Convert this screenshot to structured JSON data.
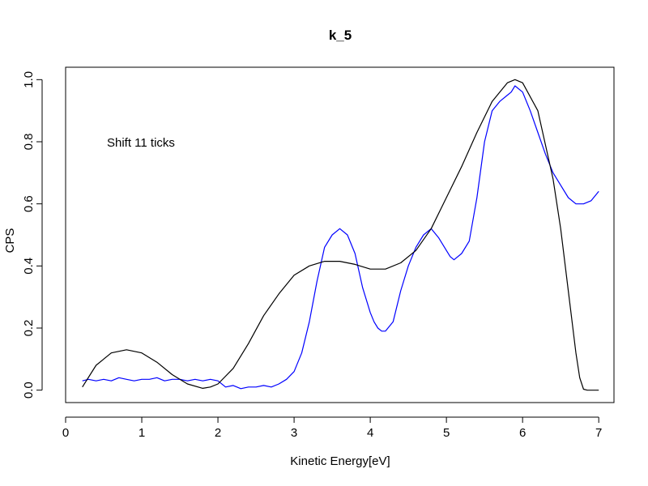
{
  "chart_data": {
    "type": "line",
    "title": "k_5",
    "xlabel": "Kinetic Energy[eV]",
    "ylabel": "CPS",
    "annotation": "Shift 11 ticks",
    "xlim": [
      0,
      7.2
    ],
    "ylim": [
      -0.04,
      1.04
    ],
    "xticks": [
      0,
      1,
      2,
      3,
      4,
      5,
      6,
      7
    ],
    "yticks": [
      0.0,
      0.2,
      0.4,
      0.6,
      0.8,
      1.0
    ],
    "xtick_labels": [
      "0",
      "1",
      "2",
      "3",
      "4",
      "5",
      "6",
      "7"
    ],
    "ytick_labels": [
      "0.0",
      "0.2",
      "0.4",
      "0.6",
      "0.8",
      "1.0"
    ],
    "grid": false,
    "series": [
      {
        "color": "#0000ff",
        "x": [
          0.22,
          0.3,
          0.4,
          0.5,
          0.6,
          0.7,
          0.8,
          0.9,
          1.0,
          1.1,
          1.2,
          1.3,
          1.4,
          1.5,
          1.6,
          1.7,
          1.8,
          1.9,
          2.0,
          2.1,
          2.2,
          2.3,
          2.4,
          2.5,
          2.6,
          2.7,
          2.8,
          2.9,
          3.0,
          3.1,
          3.2,
          3.3,
          3.4,
          3.5,
          3.6,
          3.7,
          3.8,
          3.9,
          4.0,
          4.05,
          4.1,
          4.15,
          4.2,
          4.3,
          4.4,
          4.5,
          4.6,
          4.7,
          4.8,
          4.9,
          5.0,
          5.05,
          5.1,
          5.2,
          5.3,
          5.4,
          5.5,
          5.6,
          5.7,
          5.8,
          5.85,
          5.9,
          6.0,
          6.1,
          6.2,
          6.3,
          6.4,
          6.5,
          6.6,
          6.7,
          6.8,
          6.9,
          7.0
        ],
        "y": [
          0.03,
          0.035,
          0.03,
          0.035,
          0.03,
          0.04,
          0.035,
          0.03,
          0.035,
          0.035,
          0.04,
          0.03,
          0.035,
          0.035,
          0.03,
          0.035,
          0.03,
          0.035,
          0.03,
          0.01,
          0.015,
          0.005,
          0.01,
          0.01,
          0.015,
          0.01,
          0.02,
          0.035,
          0.06,
          0.12,
          0.22,
          0.35,
          0.46,
          0.5,
          0.52,
          0.5,
          0.44,
          0.33,
          0.25,
          0.22,
          0.2,
          0.19,
          0.19,
          0.22,
          0.32,
          0.4,
          0.46,
          0.5,
          0.52,
          0.49,
          0.45,
          0.43,
          0.42,
          0.44,
          0.48,
          0.62,
          0.8,
          0.9,
          0.93,
          0.95,
          0.96,
          0.98,
          0.96,
          0.9,
          0.83,
          0.76,
          0.7,
          0.66,
          0.62,
          0.6,
          0.6,
          0.61,
          0.64
        ]
      },
      {
        "color": "#000000",
        "x": [
          0.22,
          0.4,
          0.6,
          0.8,
          1.0,
          1.2,
          1.4,
          1.6,
          1.8,
          1.9,
          2.0,
          2.2,
          2.4,
          2.6,
          2.8,
          3.0,
          3.2,
          3.4,
          3.6,
          3.8,
          4.0,
          4.2,
          4.4,
          4.6,
          4.8,
          5.0,
          5.2,
          5.4,
          5.6,
          5.8,
          5.9,
          6.0,
          6.2,
          6.4,
          6.5,
          6.6,
          6.7,
          6.75,
          6.8,
          6.85,
          7.0
        ],
        "y": [
          0.01,
          0.08,
          0.12,
          0.13,
          0.12,
          0.09,
          0.05,
          0.02,
          0.006,
          0.01,
          0.02,
          0.07,
          0.15,
          0.24,
          0.31,
          0.37,
          0.4,
          0.415,
          0.415,
          0.405,
          0.39,
          0.39,
          0.41,
          0.45,
          0.52,
          0.62,
          0.72,
          0.83,
          0.93,
          0.99,
          1.0,
          0.99,
          0.9,
          0.68,
          0.52,
          0.32,
          0.12,
          0.04,
          0.003,
          0.0,
          0.0
        ]
      }
    ]
  }
}
